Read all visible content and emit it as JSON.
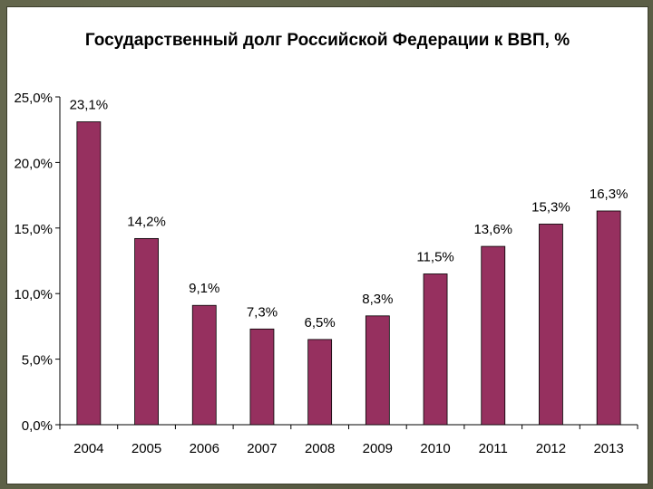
{
  "chart_data": {
    "type": "bar",
    "title": "Государственный долг Российской Федерации к ВВП, %",
    "categories": [
      "2004",
      "2005",
      "2006",
      "2007",
      "2008",
      "2009",
      "2010",
      "2011",
      "2012",
      "2013"
    ],
    "values": [
      23.1,
      14.2,
      9.1,
      7.3,
      6.5,
      8.3,
      11.5,
      13.6,
      15.3,
      16.3
    ],
    "data_labels": [
      "23,1%",
      "14,2%",
      "9,1%",
      "7,3%",
      "6,5%",
      "8,3%",
      "11,5%",
      "13,6%",
      "15,3%",
      "16,3%"
    ],
    "y_ticks": [
      "0,0%",
      "5,0%",
      "10,0%",
      "15,0%",
      "20,0%",
      "25,0%"
    ],
    "ylim": [
      0,
      25
    ],
    "grid": false,
    "legend": "none",
    "bar_color": "#96305f",
    "axis_color": "#000000"
  }
}
